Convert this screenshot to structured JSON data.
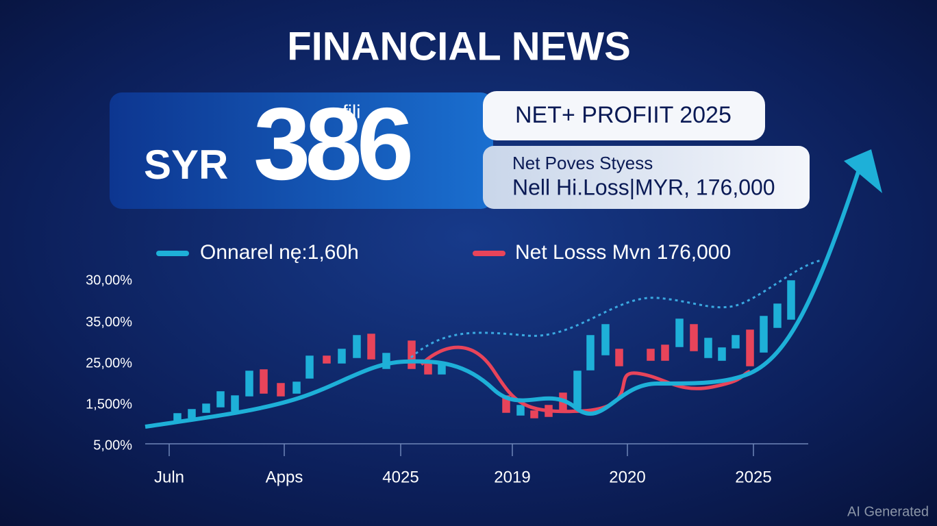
{
  "header": {
    "title": "FINANCIAL NEWS"
  },
  "banner": {
    "currency": "SYR",
    "figure": "386",
    "superscript": "fili",
    "headline": "NET+ PROFIIT 2025",
    "detail_lines": [
      "Net Poves Styess",
      "Nell Hi.Loss|MYR, 176,000"
    ]
  },
  "legend": [
    "Onnarel nę:1,60h",
    "Net Losss Mvn 176,000"
  ],
  "axis": {
    "y_labels": [
      "30,00%",
      "35,00%",
      "25,00%",
      "1,500%",
      "5,00%"
    ],
    "x_labels": [
      "Juln",
      "Apps",
      "4025",
      "2019",
      "2020",
      "2025"
    ]
  },
  "watermark": "AI Generated"
}
